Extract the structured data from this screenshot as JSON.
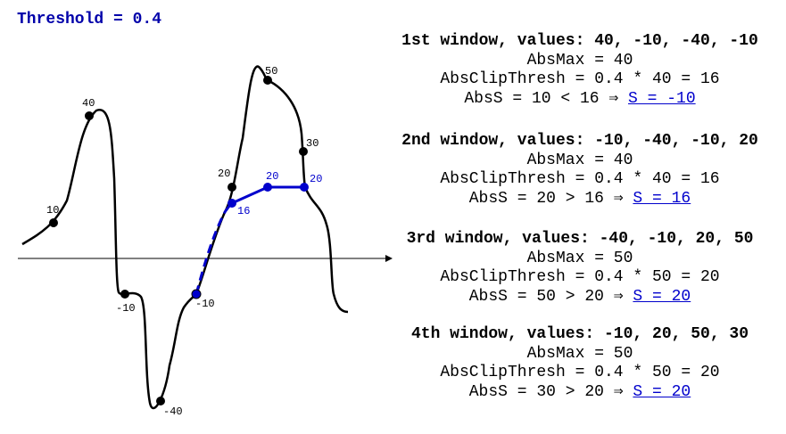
{
  "threshold_title": "Threshold = 0.4",
  "point_labels": {
    "p10": "10",
    "p40": "40",
    "pm10a": "-10",
    "pm40": "-40",
    "pm10b": "-10",
    "p20": "20",
    "p50": "50",
    "p30": "30",
    "b16": "16",
    "b20a": "20",
    "b20b": "20"
  },
  "windows": [
    {
      "title": "1st window, values: 40, -10, -40, -10",
      "absmax": "AbsMax = 40",
      "clip": "AbsClipThresh = 0.4 * 40 = 16",
      "abss_prefix": "AbsS = 10 < 16 ⇒ ",
      "result": "S = -10"
    },
    {
      "title": "2nd window, values: -10, -40, -10, 20",
      "absmax": "AbsMax = 40",
      "clip": "AbsClipThresh = 0.4 * 40 = 16",
      "abss_prefix": "AbsS = 20 > 16 ⇒ ",
      "result": "S = 16"
    },
    {
      "title": "3rd window, values: -40, -10, 20, 50",
      "absmax": "AbsMax = 50",
      "clip": "AbsClipThresh = 0.4 * 50 = 20",
      "abss_prefix": "AbsS = 50 > 20 ⇒ ",
      "result": "S = 20"
    },
    {
      "title": "4th window, values: -10, 20, 50, 30",
      "absmax": "AbsMax = 50",
      "clip": "AbsClipThresh = 0.4 * 50 = 20",
      "abss_prefix": "AbsS = 30 > 20 ⇒ ",
      "result": "S = 20"
    }
  ]
}
